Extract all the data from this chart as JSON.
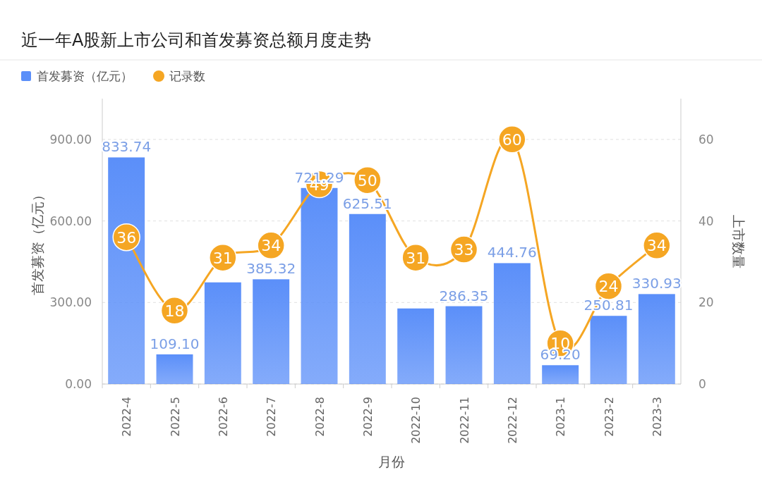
{
  "chart_data": {
    "type": "bar",
    "title": "近一年A股新上市公司和首发募资总额月度走势",
    "xlabel": "月份",
    "ylabel": "首发募资（亿元）",
    "y2label": "上市数量",
    "categories": [
      "2022-4",
      "2022-5",
      "2022-6",
      "2022-7",
      "2022-8",
      "2022-9",
      "2022-10",
      "2022-11",
      "2022-12",
      "2023-1",
      "2023-2",
      "2023-3"
    ],
    "series": [
      {
        "name": "首发募资（亿元）",
        "color": "#5b8ff9",
        "values": [
          833.74,
          109.1,
          374,
          385.32,
          721.29,
          625.51,
          278,
          286.35,
          444.76,
          69.2,
          250.81,
          330.93
        ],
        "value_labels": [
          "833.74",
          "109.10",
          null,
          "385.32",
          "721.29",
          "625.51",
          null,
          "286.35",
          "444.76",
          "69.20",
          "250.81",
          "330.93"
        ]
      },
      {
        "name": "记录数",
        "type": "line",
        "axis": "y2",
        "color": "#f5a623",
        "values": [
          36,
          18,
          31,
          34,
          49,
          50,
          31,
          33,
          60,
          10,
          24,
          34
        ],
        "value_labels": [
          "36",
          "18",
          "31",
          "34",
          "49",
          "50",
          "31",
          "33",
          "60",
          "10",
          "24",
          "34"
        ]
      }
    ],
    "ylim": [
      0,
      1050
    ],
    "yticks": [
      {
        "value": 0,
        "label": "0.00"
      },
      {
        "value": 300,
        "label": "300.00"
      },
      {
        "value": 600,
        "label": "600.00"
      },
      {
        "value": 900,
        "label": "900.00"
      }
    ],
    "y2lim": [
      0,
      70
    ],
    "y2ticks": [
      0,
      20,
      40,
      60
    ],
    "grid": "y",
    "legend": "top left",
    "marker": "circle",
    "line_style": "solid"
  }
}
